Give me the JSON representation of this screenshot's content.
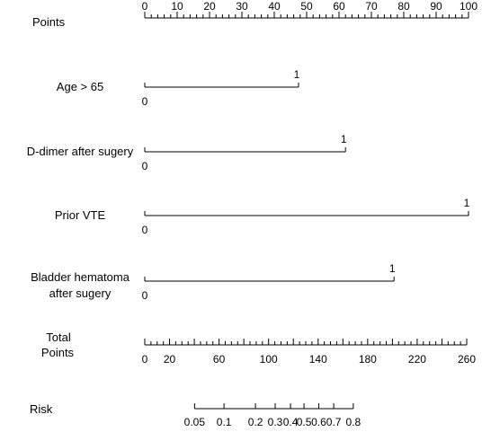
{
  "chart_data": {
    "type": "nomogram",
    "points_axis": {
      "label": "Points",
      "range": [
        0,
        100
      ],
      "major_ticks": [
        0,
        10,
        20,
        30,
        40,
        50,
        60,
        70,
        80,
        90,
        100
      ],
      "minor_step": 2
    },
    "predictors": [
      {
        "label": "Age > 65",
        "levels": [
          {
            "label": "0",
            "points": 0
          },
          {
            "label": "1",
            "points": 47.5
          }
        ]
      },
      {
        "label": "D-dimer after sugery",
        "levels": [
          {
            "label": "0",
            "points": 0
          },
          {
            "label": "1",
            "points": 62
          }
        ]
      },
      {
        "label": "Prior VTE",
        "levels": [
          {
            "label": "0",
            "points": 0
          },
          {
            "label": "1",
            "points": 100
          }
        ]
      },
      {
        "label_lines": [
          "Bladder hematoma",
          "after sugery"
        ],
        "levels": [
          {
            "label": "0",
            "points": 0
          },
          {
            "label": "1",
            "points": 77
          }
        ]
      }
    ],
    "total_points_axis": {
      "label_lines": [
        "Total",
        "Points"
      ],
      "range": [
        0,
        260
      ],
      "major_ticks": [
        0,
        20,
        60,
        100,
        140,
        180,
        220,
        260
      ],
      "minor_step": 5
    },
    "risk_axis": {
      "label": "Risk",
      "ticks": [
        {
          "label": "0.05",
          "total_points": 40.2
        },
        {
          "label": "0.1",
          "total_points": 64
        },
        {
          "label": "0.2",
          "total_points": 89.4
        },
        {
          "label": "0.3",
          "total_points": 105.3
        },
        {
          "label": "0.4",
          "total_points": 117.7
        },
        {
          "label": "0.5",
          "total_points": 128.6
        },
        {
          "label": "0.6",
          "total_points": 140.5
        },
        {
          "label": "0.7",
          "total_points": 152.6
        },
        {
          "label": "0.8",
          "total_points": 168.4
        }
      ]
    }
  }
}
